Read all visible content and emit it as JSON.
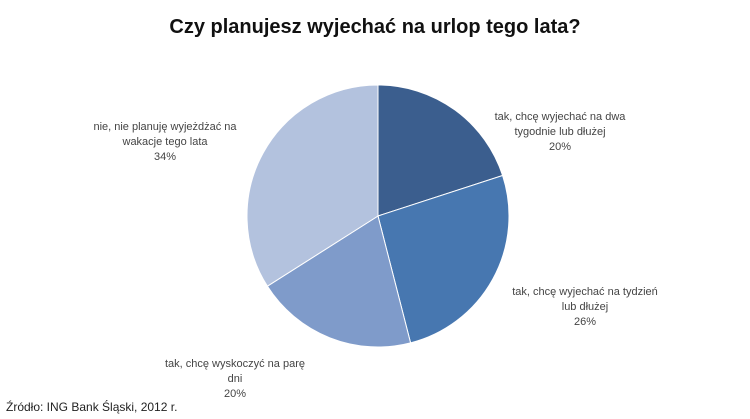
{
  "chart_data": {
    "type": "pie",
    "title": "Czy planujesz wyjechać na urlop tego lata?",
    "categories": [
      "tak, chcę wyjechać na dwa tygodnie lub dłużej",
      "tak, chcę wyjechać na tydzień lub dłużej",
      "tak, chcę wyskoczyć na parę dni",
      "nie, nie planuję wyjeżdżać na wakacje tego lata"
    ],
    "values": [
      20,
      26,
      20,
      34
    ],
    "value_labels": [
      "20%",
      "26%",
      "20%",
      "34%"
    ],
    "colors": [
      "#3b5e8e",
      "#4777b0",
      "#7f9bca",
      "#b3c2de"
    ],
    "source": "Źródło: ING Bank Śląski, 2012 r."
  }
}
